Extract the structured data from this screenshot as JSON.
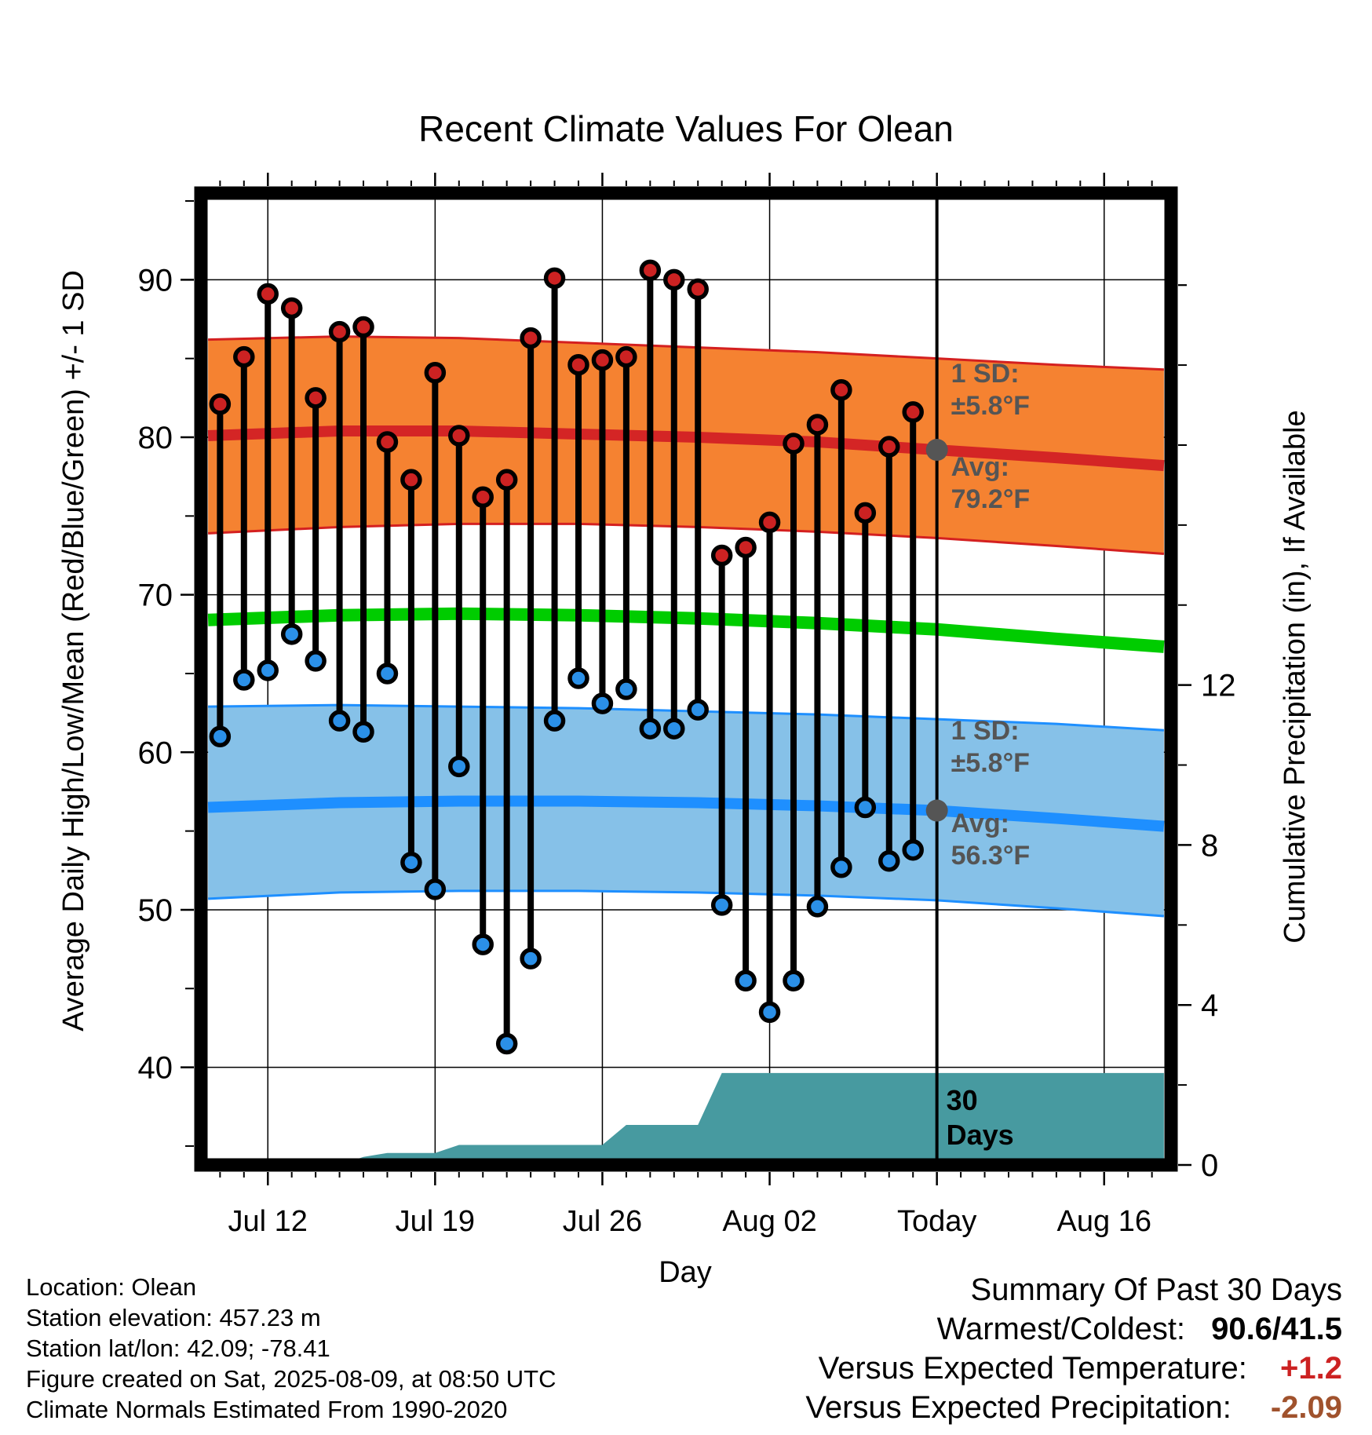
{
  "chart_data": {
    "type": "line",
    "title": "Recent Climate Values For Olean",
    "xlabel": "Day",
    "ylabel": "Average Daily High/Low/Mean (Red/Blue/Green) +/- 1 SD",
    "y2label": "Cumulative Precipitation (in), If Available",
    "x_ticks": [
      "Jul 12",
      "Jul 19",
      "Jul 26",
      "Aug 02",
      "Today",
      "Aug 16"
    ],
    "y_ticks": [
      40,
      50,
      60,
      70,
      80,
      90
    ],
    "y2_ticks": [
      0,
      4,
      8,
      12
    ],
    "ylim": [
      33.8,
      95.5
    ],
    "y2lim": [
      0,
      24.3
    ],
    "day_offset_range": [
      -30.8,
      9.8
    ],
    "grid": true,
    "days": [
      "Jul 10",
      "Jul 11",
      "Jul 12",
      "Jul 13",
      "Jul 14",
      "Jul 15",
      "Jul 16",
      "Jul 17",
      "Jul 18",
      "Jul 19",
      "Jul 20",
      "Jul 21",
      "Jul 22",
      "Jul 23",
      "Jul 24",
      "Jul 25",
      "Jul 26",
      "Jul 27",
      "Jul 28",
      "Jul 29",
      "Jul 30",
      "Jul 31",
      "Aug 01",
      "Aug 02",
      "Aug 03",
      "Aug 04",
      "Aug 05",
      "Aug 06",
      "Aug 07",
      "Aug 08"
    ],
    "day_offsets": [
      -30,
      -29,
      -28,
      -27,
      -26,
      -25,
      -24,
      -23,
      -22,
      -21,
      -20,
      -19,
      -18,
      -17,
      -16,
      -15,
      -14,
      -13,
      -12,
      -11,
      -10,
      -9,
      -8,
      -7,
      -6,
      -5,
      -4,
      -3,
      -2,
      -1
    ],
    "highs": [
      82.1,
      85.1,
      89.1,
      88.2,
      82.5,
      86.7,
      87.0,
      79.7,
      77.3,
      84.1,
      80.1,
      76.2,
      77.3,
      86.3,
      90.1,
      84.6,
      84.9,
      85.1,
      90.6,
      90.0,
      89.4,
      72.5,
      73.0,
      74.6,
      79.6,
      80.8,
      83.0,
      75.2,
      79.4,
      81.6
    ],
    "lows": [
      61.0,
      64.6,
      65.2,
      67.5,
      65.8,
      62.0,
      61.3,
      65.0,
      53.0,
      51.3,
      59.1,
      47.8,
      41.5,
      46.9,
      62.0,
      64.7,
      63.1,
      64.0,
      61.5,
      61.5,
      62.7,
      50.3,
      45.5,
      43.5,
      45.5,
      50.2,
      52.7,
      56.5,
      53.1,
      53.8
    ],
    "normal_high": {
      "x": [
        -30.5,
        -25,
        -20,
        -15,
        -10,
        -5,
        0,
        5,
        9.5
      ],
      "y": [
        80.1,
        80.4,
        80.4,
        80.2,
        80.0,
        79.7,
        79.2,
        78.7,
        78.2
      ]
    },
    "normal_high_sd_upper": {
      "x": [
        -30.5,
        -25,
        -20,
        -15,
        -10,
        -5,
        0,
        5,
        9.5
      ],
      "y": [
        86.2,
        86.4,
        86.3,
        86.0,
        85.7,
        85.4,
        85.0,
        84.6,
        84.3
      ]
    },
    "normal_high_sd_lower": {
      "x": [
        -30.5,
        -25,
        -20,
        -15,
        -10,
        -5,
        0,
        5,
        9.5
      ],
      "y": [
        73.9,
        74.3,
        74.5,
        74.5,
        74.3,
        74.0,
        73.6,
        73.1,
        72.6
      ]
    },
    "normal_mean": {
      "x": [
        -30.5,
        -25,
        -20,
        -15,
        -10,
        -5,
        0,
        5,
        9.5
      ],
      "y": [
        68.4,
        68.7,
        68.8,
        68.7,
        68.5,
        68.2,
        67.8,
        67.2,
        66.7
      ]
    },
    "normal_low": {
      "x": [
        -30.5,
        -25,
        -20,
        -15,
        -10,
        -5,
        0,
        5,
        9.5
      ],
      "y": [
        56.5,
        56.8,
        56.9,
        56.9,
        56.8,
        56.6,
        56.3,
        55.8,
        55.3
      ]
    },
    "normal_low_sd_upper": {
      "x": [
        -30.5,
        -25,
        -20,
        -15,
        -10,
        -5,
        0,
        5,
        9.5
      ],
      "y": [
        62.9,
        63.0,
        62.9,
        62.8,
        62.6,
        62.4,
        62.1,
        61.8,
        61.4
      ]
    },
    "normal_low_sd_lower": {
      "x": [
        -30.5,
        -25,
        -20,
        -15,
        -10,
        -5,
        0,
        5,
        9.5
      ],
      "y": [
        50.7,
        51.1,
        51.2,
        51.2,
        51.1,
        50.9,
        50.6,
        50.1,
        49.6
      ]
    },
    "precip_cumulative": {
      "x": [
        -30.5,
        -25,
        -24,
        -23,
        -22,
        -21,
        -20,
        -15,
        -14,
        -13,
        -12,
        -11,
        -10,
        -9,
        -8,
        -7,
        -6,
        -5,
        -4,
        -3,
        -2,
        -1,
        0,
        9.5
      ],
      "y": [
        0.0,
        0.0,
        0.2,
        0.3,
        0.3,
        0.3,
        0.5,
        0.5,
        0.5,
        1.0,
        1.0,
        1.0,
        1.0,
        2.3,
        2.3,
        2.3,
        2.3,
        2.3,
        2.3,
        2.3,
        2.3,
        2.3,
        2.3,
        2.3
      ]
    },
    "colors": {
      "high_point": "#cc2222",
      "low_point": "#2b90e8",
      "high_band": "#f58231",
      "high_band_edge": "#d42020",
      "normal_high_line": "#d42525",
      "mean_line": "#00cc00",
      "low_band": "#86c1e8",
      "low_band_edge": "#1e8fff",
      "normal_low_line": "#1e8fff",
      "precip_fill": "#479aa0",
      "annotation_text": "#555555",
      "today_marker": "#555555"
    },
    "annotations": {
      "high_sd_label": "1 SD:",
      "high_sd_value": "±5.8°F",
      "high_avg_label": "Avg:",
      "high_avg_value": "79.2°F",
      "low_sd_label": "1 SD:",
      "low_sd_value": "±5.8°F",
      "low_avg_label": "Avg:",
      "low_avg_value": "56.3°F",
      "precip_label_line1": "30",
      "precip_label_line2": "Days"
    }
  },
  "info": {
    "location": "Location: Olean",
    "elevation": "Station elevation: 457.23 m",
    "latlon": "Station lat/lon: 42.09; -78.41",
    "created": "Figure created on Sat, 2025-08-09, at 08:50 UTC",
    "normals": "Climate Normals Estimated From 1990-2020"
  },
  "summary": {
    "title": "Summary Of Past 30 Days",
    "warmest_label": "Warmest/Coldest:",
    "warmest_value": "90.6/41.5",
    "temp_label": "Versus Expected Temperature:",
    "temp_value": "+1.2",
    "precip_label": "Versus Expected Precipitation:",
    "precip_value": "-2.09",
    "temp_color": "#cc2222",
    "precip_color": "#a0522d"
  }
}
